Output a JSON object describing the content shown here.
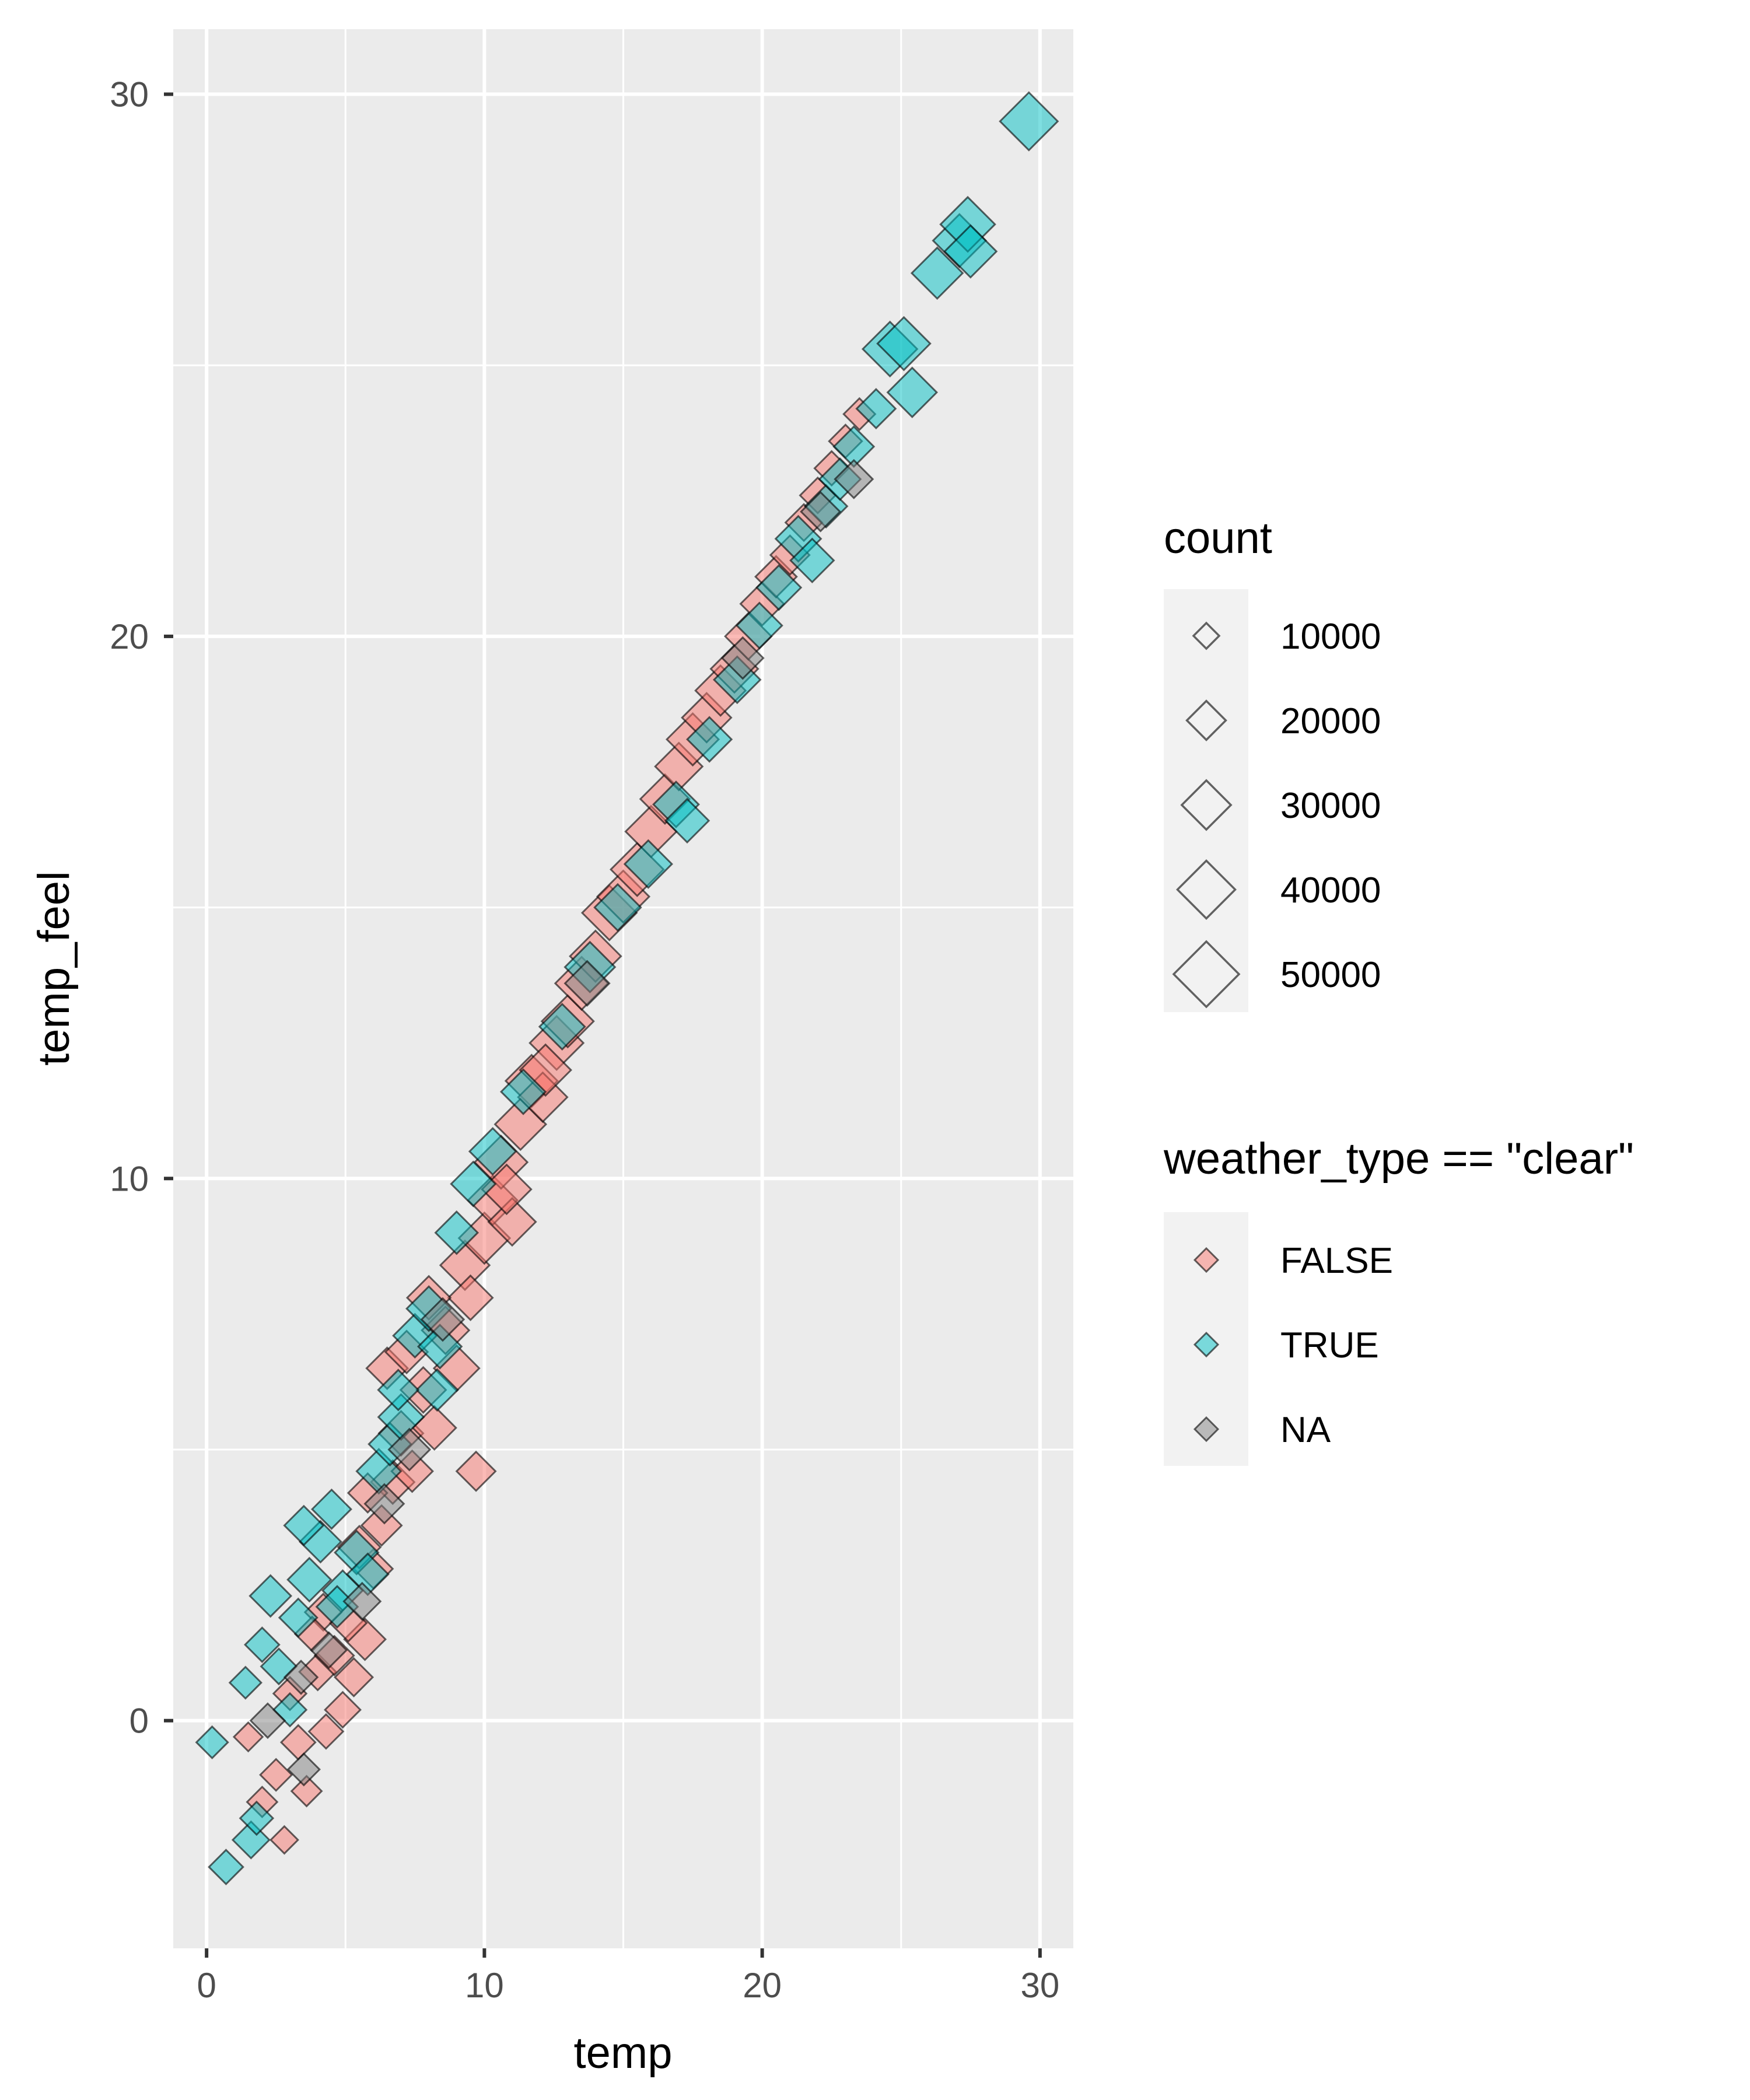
{
  "chart_data": {
    "type": "scatter",
    "title": "",
    "xlabel": "temp",
    "ylabel": "temp_feel",
    "xlim": [
      -1.2,
      31.2
    ],
    "ylim": [
      -4.2,
      31.2
    ],
    "x_ticks": [
      0,
      10,
      20,
      30
    ],
    "y_ticks": [
      0,
      10,
      20,
      30
    ],
    "grid": true,
    "panel_background": "#EBEBEB",
    "marker": "diamond",
    "size_legend": {
      "title": "count",
      "entries": [
        {
          "label": "10000",
          "value": 10000
        },
        {
          "label": "20000",
          "value": 20000
        },
        {
          "label": "30000",
          "value": 30000
        },
        {
          "label": "40000",
          "value": 40000
        },
        {
          "label": "50000",
          "value": 50000
        }
      ]
    },
    "color_legend": {
      "title": "weather_type == \"clear\"",
      "entries": [
        {
          "label": "FALSE",
          "color": "#F8766D"
        },
        {
          "label": "TRUE",
          "color": "#00BFC4"
        },
        {
          "label": "NA",
          "color": "#7F7F7F"
        }
      ]
    },
    "series": [
      {
        "name": "FALSE",
        "color": "#F8766D",
        "points": [
          [
            1.5,
            -0.3,
            12000
          ],
          [
            2.0,
            -1.5,
            13000
          ],
          [
            2.5,
            -1.0,
            14000
          ],
          [
            2.8,
            -2.2,
            11000
          ],
          [
            3.0,
            0.5,
            15000
          ],
          [
            3.3,
            -0.4,
            16000
          ],
          [
            3.6,
            -1.3,
            13000
          ],
          [
            4.0,
            0.9,
            18000
          ],
          [
            4.3,
            -0.2,
            16000
          ],
          [
            4.6,
            1.2,
            20000
          ],
          [
            4.9,
            0.2,
            17000
          ],
          [
            5.3,
            0.8,
            19000
          ],
          [
            5.7,
            1.5,
            22000
          ],
          [
            5.1,
            1.8,
            18000
          ],
          [
            6.0,
            2.8,
            20000
          ],
          [
            5.5,
            3.2,
            23000
          ],
          [
            6.3,
            3.6,
            21000
          ],
          [
            6.7,
            4.4,
            24000
          ],
          [
            7.0,
            5.3,
            25000
          ],
          [
            7.4,
            4.6,
            22000
          ],
          [
            7.8,
            6.1,
            26000
          ],
          [
            8.2,
            5.4,
            24000
          ],
          [
            8.6,
            7.2,
            28000
          ],
          [
            9.0,
            6.5,
            26000
          ],
          [
            9.3,
            8.4,
            30000
          ],
          [
            9.7,
            4.6,
            20000
          ],
          [
            9.5,
            7.8,
            25000
          ],
          [
            10.0,
            8.9,
            32000
          ],
          [
            10.3,
            9.6,
            30000
          ],
          [
            10.6,
            10.3,
            34000
          ],
          [
            11.0,
            9.2,
            28000
          ],
          [
            11.3,
            11.0,
            32000
          ],
          [
            11.7,
            11.8,
            33000
          ],
          [
            12.1,
            11.5,
            30000
          ],
          [
            12.6,
            12.5,
            35000
          ],
          [
            13.0,
            12.9,
            33000
          ],
          [
            13.5,
            13.6,
            34000
          ],
          [
            14.0,
            14.1,
            32000
          ],
          [
            14.5,
            14.9,
            36000
          ],
          [
            15.0,
            15.2,
            33000
          ],
          [
            15.5,
            15.7,
            34000
          ],
          [
            16.0,
            16.4,
            32000
          ],
          [
            16.5,
            17.0,
            30000
          ],
          [
            17.0,
            17.6,
            28000
          ],
          [
            17.5,
            18.1,
            33000
          ],
          [
            18.0,
            18.5,
            30000
          ],
          [
            18.5,
            19.0,
            31000
          ],
          [
            19.0,
            19.4,
            28000
          ],
          [
            19.5,
            20.0,
            27000
          ],
          [
            20.0,
            20.6,
            24000
          ],
          [
            20.5,
            21.1,
            22000
          ],
          [
            21.0,
            21.5,
            20000
          ],
          [
            21.5,
            22.1,
            18000
          ],
          [
            22.0,
            22.6,
            17000
          ],
          [
            22.5,
            23.1,
            16000
          ],
          [
            23.0,
            23.6,
            15000
          ],
          [
            23.5,
            24.1,
            14000
          ],
          [
            4.2,
            2.0,
            18000
          ],
          [
            6.5,
            6.5,
            22000
          ],
          [
            8.0,
            7.8,
            24000
          ],
          [
            10.8,
            9.8,
            30000
          ],
          [
            12.2,
            12.0,
            32000
          ],
          [
            3.8,
            1.6,
            16000
          ],
          [
            5.8,
            4.2,
            20000
          ],
          [
            7.2,
            6.8,
            23000
          ]
        ]
      },
      {
        "name": "TRUE",
        "color": "#00BFC4",
        "points": [
          [
            0.2,
            -0.4,
            14000
          ],
          [
            0.7,
            -2.7,
            16000
          ],
          [
            1.6,
            -2.2,
            18000
          ],
          [
            1.8,
            -1.8,
            15000
          ],
          [
            1.4,
            0.7,
            14000
          ],
          [
            2.0,
            1.4,
            16000
          ],
          [
            2.3,
            2.3,
            22000
          ],
          [
            2.6,
            1.0,
            17000
          ],
          [
            3.0,
            0.2,
            15000
          ],
          [
            3.3,
            1.9,
            19000
          ],
          [
            3.7,
            2.6,
            24000
          ],
          [
            4.1,
            3.3,
            22000
          ],
          [
            4.5,
            3.9,
            20000
          ],
          [
            4.9,
            2.4,
            21000
          ],
          [
            5.4,
            3.1,
            24000
          ],
          [
            5.8,
            2.7,
            22000
          ],
          [
            6.2,
            4.6,
            25000
          ],
          [
            6.6,
            5.1,
            23000
          ],
          [
            7.0,
            5.6,
            26000
          ],
          [
            7.5,
            7.1,
            24000
          ],
          [
            8.0,
            7.6,
            25000
          ],
          [
            8.3,
            6.1,
            22000
          ],
          [
            9.0,
            9.0,
            23000
          ],
          [
            9.6,
            9.9,
            25000
          ],
          [
            10.3,
            10.5,
            27000
          ],
          [
            11.4,
            11.6,
            25000
          ],
          [
            12.8,
            12.8,
            26000
          ],
          [
            13.8,
            13.9,
            31000
          ],
          [
            14.8,
            15.0,
            27000
          ],
          [
            15.9,
            15.8,
            28000
          ],
          [
            16.9,
            16.9,
            26000
          ],
          [
            17.3,
            16.6,
            24000
          ],
          [
            18.1,
            18.1,
            25000
          ],
          [
            19.1,
            19.2,
            27000
          ],
          [
            19.9,
            20.2,
            26000
          ],
          [
            20.6,
            20.9,
            25000
          ],
          [
            21.3,
            21.8,
            26000
          ],
          [
            21.8,
            21.4,
            24000
          ],
          [
            22.3,
            22.4,
            23000
          ],
          [
            22.8,
            22.9,
            22000
          ],
          [
            23.3,
            23.5,
            21000
          ],
          [
            24.1,
            24.2,
            20000
          ],
          [
            24.6,
            25.3,
            36000
          ],
          [
            25.1,
            25.4,
            34000
          ],
          [
            25.4,
            24.5,
            30000
          ],
          [
            26.3,
            26.7,
            32000
          ],
          [
            27.1,
            27.3,
            34000
          ],
          [
            27.4,
            27.6,
            36000
          ],
          [
            27.5,
            27.1,
            33000
          ],
          [
            29.6,
            29.5,
            40000
          ],
          [
            3.5,
            3.6,
            20000
          ],
          [
            4.7,
            2.1,
            22000
          ],
          [
            6.9,
            6.1,
            21000
          ],
          [
            8.4,
            6.9,
            24000
          ]
        ]
      },
      {
        "name": "NA",
        "color": "#7F7F7F",
        "points": [
          [
            2.2,
            0.0,
            16000
          ],
          [
            3.4,
            0.8,
            15000
          ],
          [
            3.5,
            -0.9,
            14000
          ],
          [
            4.4,
            1.3,
            17000
          ],
          [
            5.6,
            2.2,
            18000
          ],
          [
            6.4,
            4.0,
            20000
          ],
          [
            7.3,
            5.0,
            22000
          ],
          [
            8.5,
            7.4,
            23000
          ],
          [
            13.7,
            13.6,
            25000
          ],
          [
            19.3,
            19.6,
            22000
          ],
          [
            22.1,
            22.3,
            20000
          ],
          [
            23.3,
            22.9,
            19000
          ]
        ]
      }
    ]
  }
}
